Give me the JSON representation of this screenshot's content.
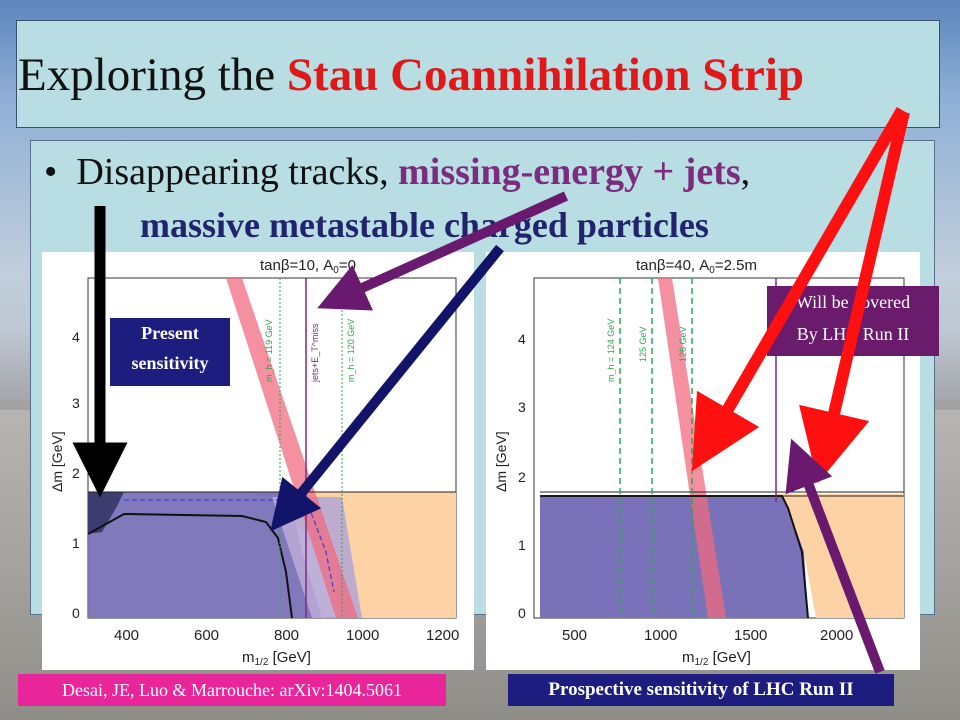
{
  "title": {
    "prefix": "Exploring the ",
    "highlight": "Stau Coannihilation Strip"
  },
  "bullet": {
    "text_plain": "Disappearing tracks, ",
    "text_purple": "missing-energy + jets",
    "text_comma": ",",
    "line2": "massive metastable charged particles"
  },
  "left_plot": {
    "header": "tanβ=10, A",
    "header_sub": "0",
    "header_tail": "=0",
    "xlabel": "m",
    "xlabel_sub": "1/2",
    "xlabel_unit": " [GeV]",
    "ylabel": "Δm [GeV]",
    "xticks": [
      "400",
      "600",
      "800",
      "1000",
      "1200"
    ],
    "yticks": [
      "0",
      "1",
      "2",
      "3",
      "4"
    ],
    "line_labels": [
      "m_h = 119 GeV",
      "jets+E_T^miss",
      "m_h = 120 GeV"
    ]
  },
  "right_plot": {
    "header": "tanβ=40, A",
    "header_sub": "0",
    "header_tail": "=2.5m",
    "xlabel": "m",
    "xlabel_sub": "1/2",
    "xlabel_unit": " [GeV]",
    "ylabel": "Δm [GeV]",
    "xticks": [
      "500",
      "1000",
      "1500",
      "2000"
    ],
    "yticks": [
      "0",
      "1",
      "2",
      "3",
      "4"
    ],
    "line_labels": [
      "m_h = 124 GeV",
      "125 GeV",
      "126 GeV"
    ]
  },
  "labels": {
    "present_line1": "Present",
    "present_line2": "sensitivity",
    "will_line1": "Will be covered",
    "will_line2": "By LHC Run II",
    "citation": "Desai, JE, Luo & Marrouche: arXiv:1404.5061",
    "prospective": "Prospective sensitivity of LHC Run II"
  },
  "colors": {
    "title_highlight": "#e01818",
    "bullet_purple": "#7b2c7d",
    "bullet_navy": "#22236d",
    "arrow_red": "#ff1010",
    "arrow_purple": "#6a1a6e",
    "arrow_navy": "#12146a",
    "region_purple": "#7a72b8",
    "region_orange": "#fdd3a6",
    "strip_pink": "#f06b80"
  }
}
